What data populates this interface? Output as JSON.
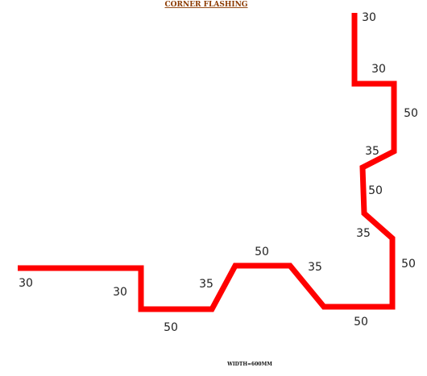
{
  "title": "CORNER FLASHING",
  "dimensions": [
    "30",
    "30",
    "50",
    "35",
    "50",
    "35",
    "50",
    "50",
    "35",
    "50",
    "35",
    "50",
    "30",
    "30"
  ],
  "footer": "WIDTH=600MM"
}
